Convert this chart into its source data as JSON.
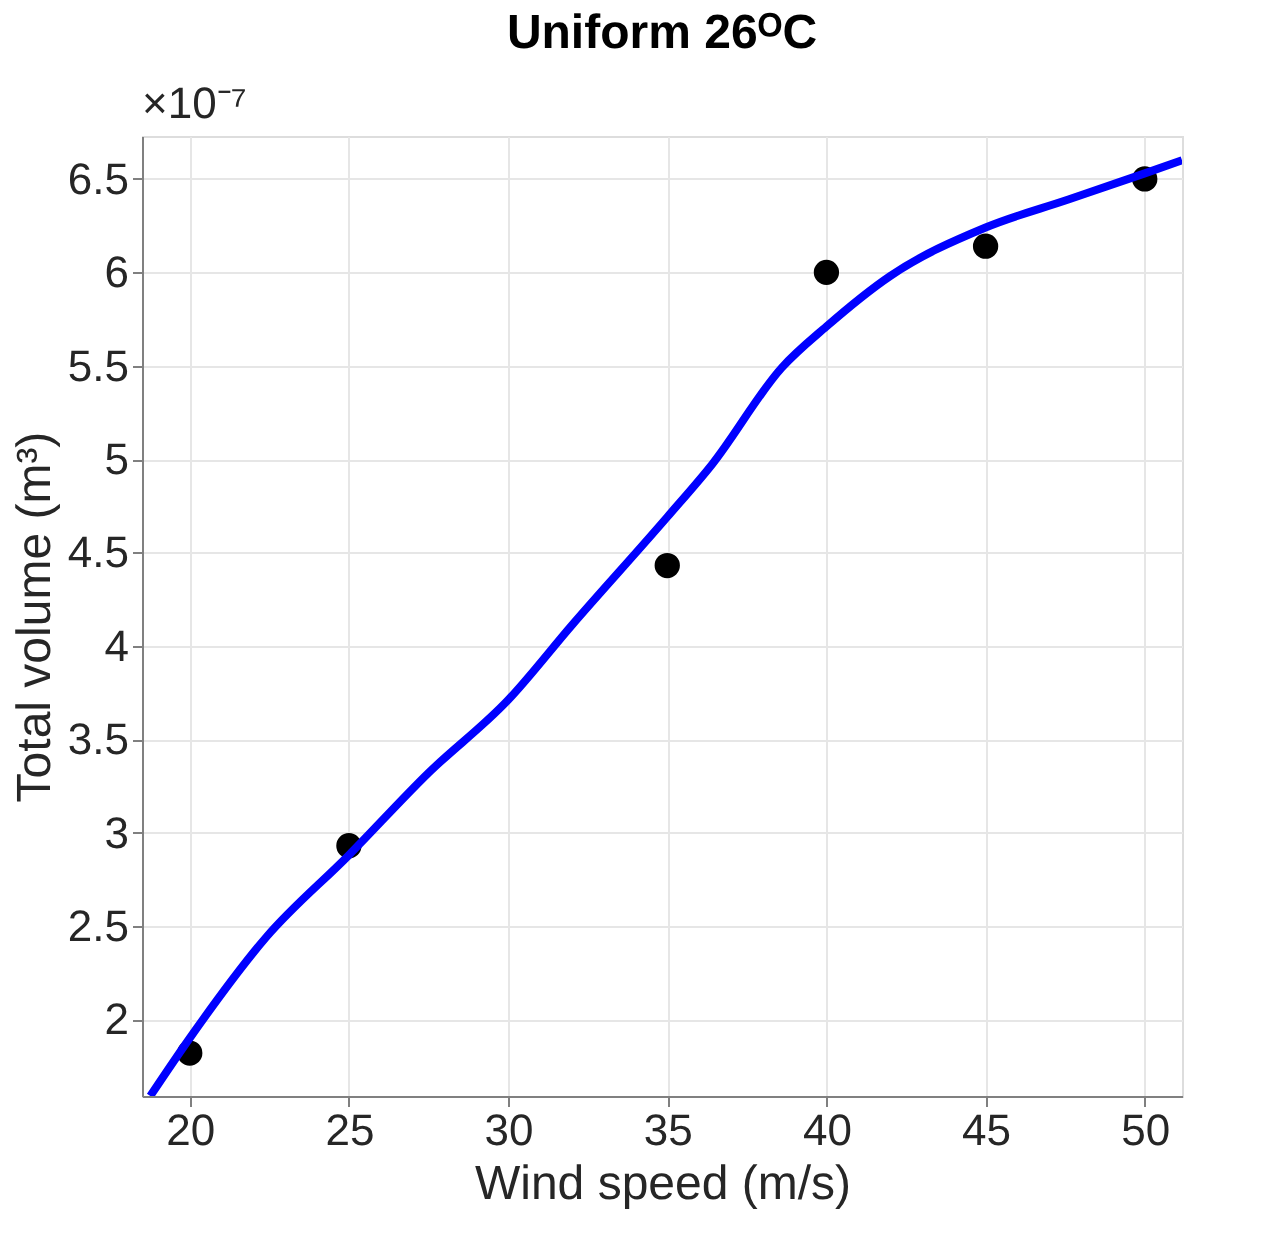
{
  "chart_data": {
    "type": "scatter",
    "title": "Uniform 26ᴼC",
    "xlabel": "Wind speed (m/s)",
    "ylabel": "Total volume (m³)",
    "annotations": [
      "×10⁻⁷"
    ],
    "series": [
      {
        "color": "#000000",
        "marker": "circle",
        "x": [
          20,
          25,
          35,
          40,
          45,
          50
        ],
        "values": [
          1.82,
          2.93,
          4.43,
          6.0,
          6.14,
          6.5
        ]
      },
      {
        "type": "line",
        "color": "#0000ff",
        "marker": "none",
        "line_style": "solid",
        "x": [
          18.76,
          20,
          22.4,
          25,
          27.5,
          30,
          32,
          35,
          36.4,
          38.6,
          40,
          42,
          45,
          47.6,
          50,
          51.17
        ],
        "values": [
          1.59,
          1.9,
          2.44,
          2.88,
          3.32,
          3.71,
          4.11,
          4.69,
          4.97,
          5.49,
          5.71,
          5.98,
          6.24,
          6.39,
          6.53,
          6.6
        ]
      }
    ],
    "xlim": [
      18.5,
      51.17
    ],
    "xticks": [
      20,
      25,
      30,
      35,
      40,
      45,
      50
    ],
    "ylim": [
      1.59,
      6.73
    ],
    "yticks": [
      2,
      2.5,
      3,
      3.5,
      4,
      4.5,
      5,
      5.5,
      6,
      6.5
    ],
    "grid": true
  }
}
